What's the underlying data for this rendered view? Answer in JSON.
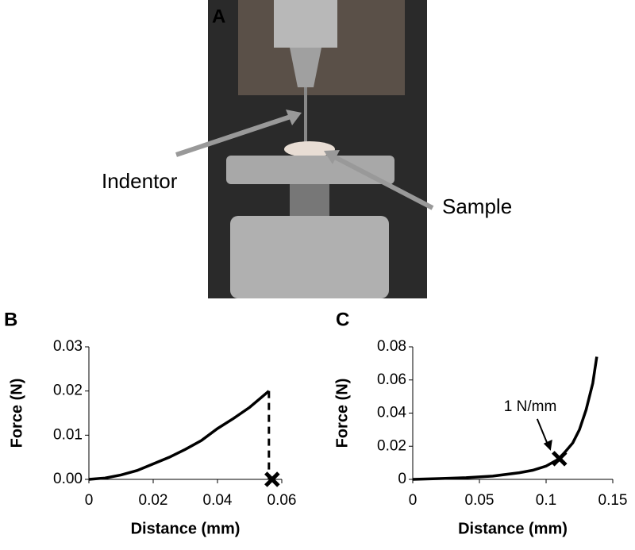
{
  "photo": {
    "label": "A",
    "annotations": [
      "Indentor",
      "Sample"
    ]
  },
  "chart_data": [
    {
      "type": "line",
      "panel_label": "B",
      "x_label": "Distance (mm)",
      "y_label": "Force (N)",
      "x": [
        0,
        0.005,
        0.01,
        0.015,
        0.02,
        0.025,
        0.03,
        0.035,
        0.04,
        0.045,
        0.05,
        0.056
      ],
      "series": [
        {
          "color": "#000000",
          "values": [
            0,
            0.0003,
            0.001,
            0.002,
            0.0035,
            0.005,
            0.0068,
            0.0088,
            0.0115,
            0.0138,
            0.0163,
            0.02
          ]
        }
      ],
      "xlim": [
        0,
        0.06
      ],
      "xticks": [
        0,
        0.02,
        0.04,
        0.06
      ],
      "ylim": [
        0,
        0.03
      ],
      "yticks": [
        {
          "value": 0,
          "label": "0.00"
        },
        0.01,
        0.02,
        0.03
      ],
      "drop_line": true,
      "marker": {
        "x": 0.057,
        "y": 0
      }
    },
    {
      "type": "line",
      "panel_label": "C",
      "x_label": "Distance (mm)",
      "y_label": "Force (N)",
      "x": [
        0,
        0.02,
        0.04,
        0.06,
        0.08,
        0.09,
        0.1,
        0.11,
        0.12,
        0.125,
        0.13,
        0.135,
        0.138
      ],
      "series": [
        {
          "color": "#000000",
          "values": [
            0,
            0.0005,
            0.001,
            0.002,
            0.004,
            0.0055,
            0.008,
            0.0125,
            0.022,
            0.03,
            0.042,
            0.058,
            0.074
          ]
        }
      ],
      "xlim": [
        0,
        0.15
      ],
      "xticks": [
        0,
        0.05,
        0.1,
        0.15
      ],
      "ylim": [
        0,
        0.08
      ],
      "yticks": [
        0,
        0.02,
        0.04,
        0.06,
        0.08
      ],
      "drop_line": false,
      "marker": {
        "x": 0.11,
        "y": 0.0125
      },
      "annotation": "1 N/mm"
    }
  ]
}
